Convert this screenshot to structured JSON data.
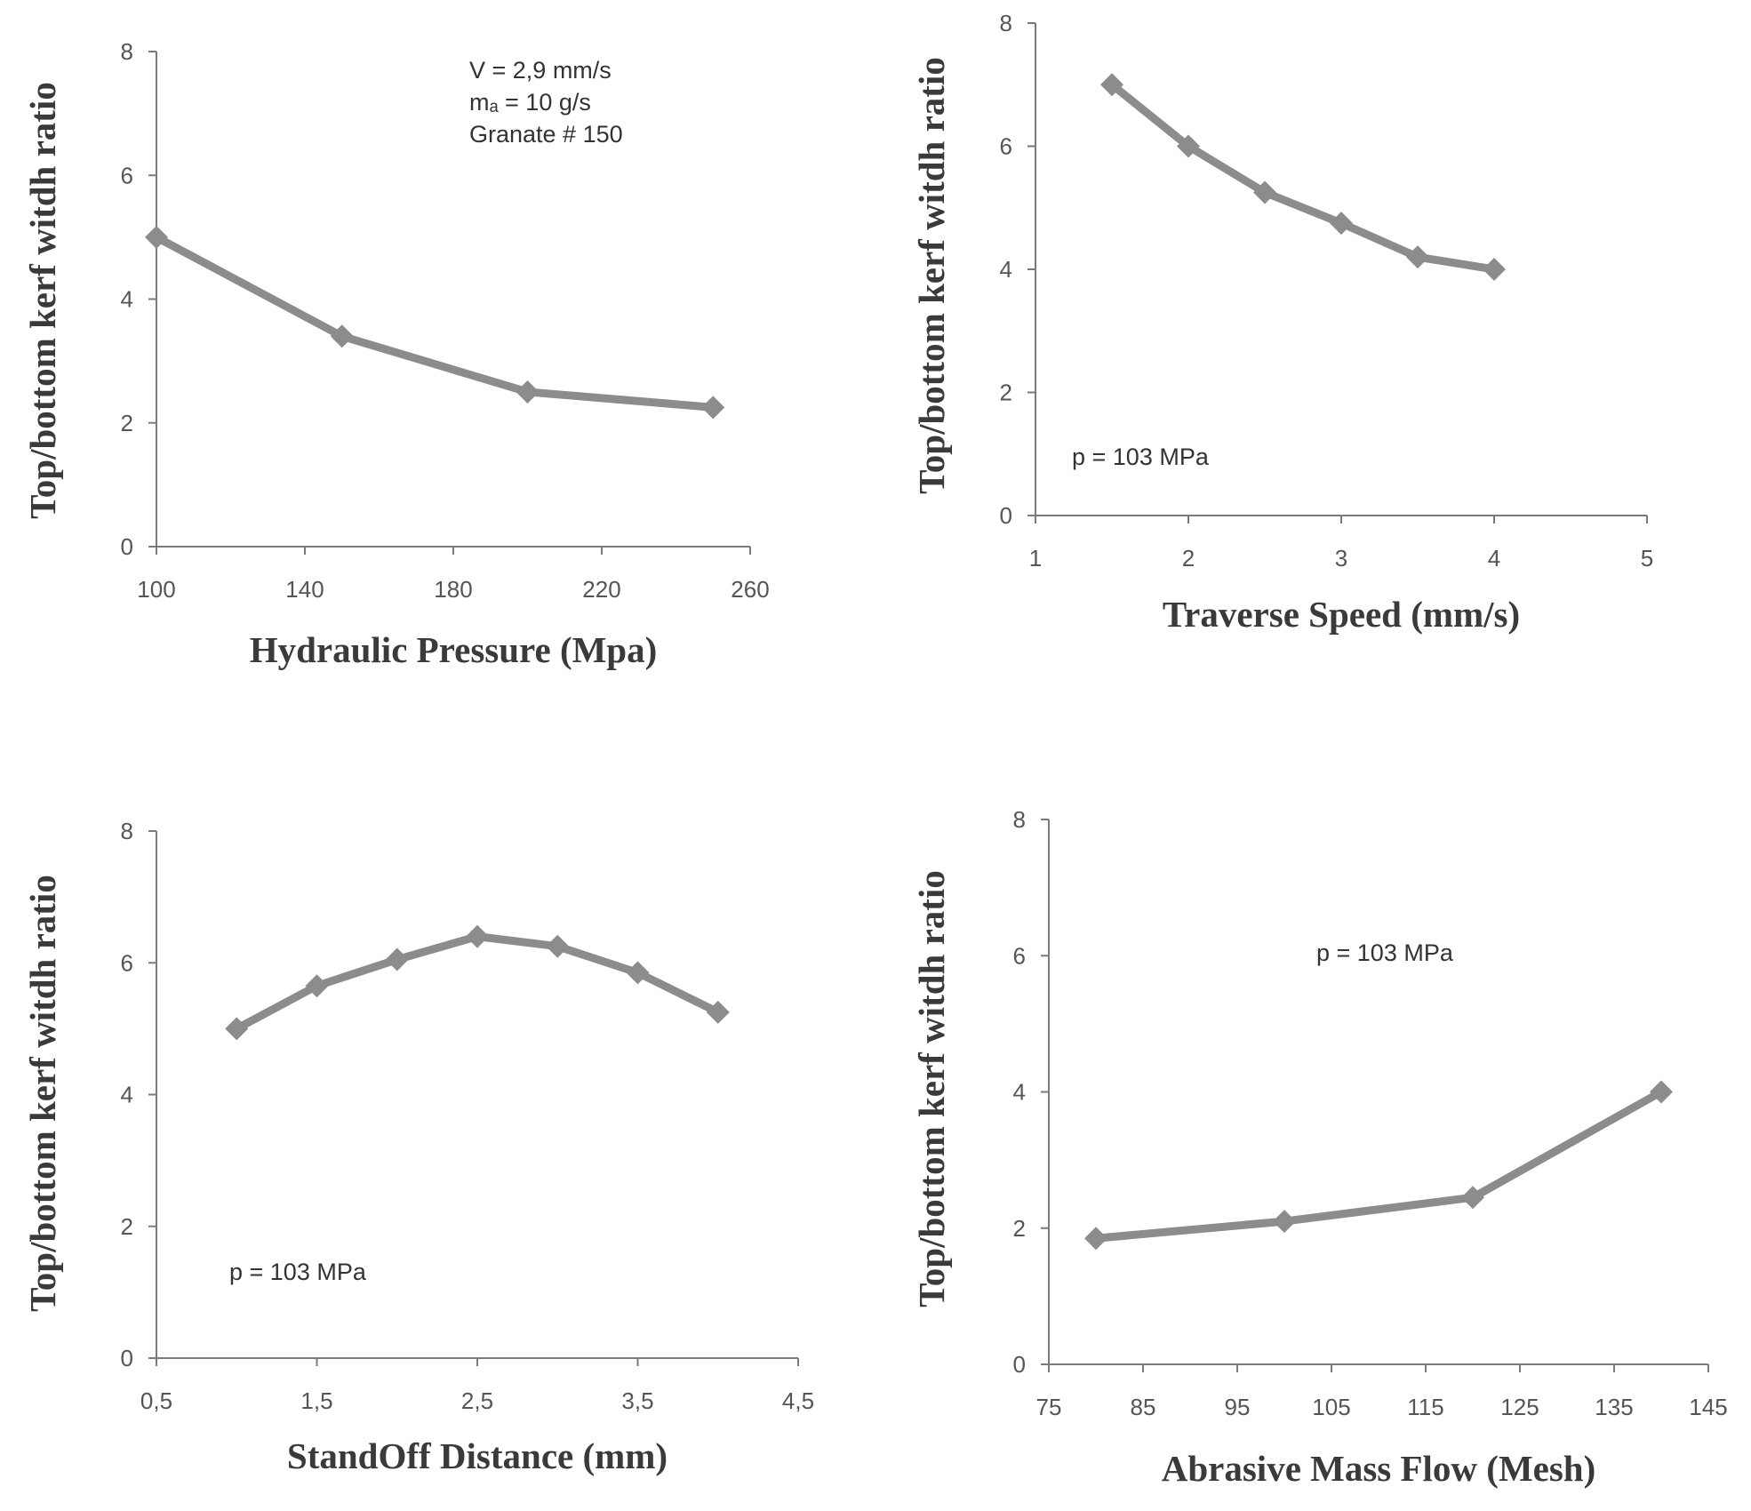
{
  "colors": {
    "series": "#8c8c8c",
    "axis": "#7a7a7a",
    "text": "#3a3a3a"
  },
  "chart_data": [
    {
      "type": "line",
      "xlabel": "Hydraulic Pressure (Mpa)",
      "ylabel": "Top/bottom kerf witdh ratio",
      "xlim": [
        100,
        260
      ],
      "ylim": [
        0,
        8
      ],
      "xticks": [
        100,
        140,
        180,
        220,
        260
      ],
      "xtick_labels": [
        "100",
        "140",
        "180",
        "220",
        "260"
      ],
      "yticks": [
        0,
        2,
        4,
        6,
        8
      ],
      "ytick_labels": [
        "0",
        "2",
        "4",
        "6",
        "8"
      ],
      "grid": false,
      "marker": "diamond",
      "x": [
        100,
        150,
        200,
        250
      ],
      "series": [
        {
          "values": [
            5.0,
            3.4,
            2.5,
            2.25
          ]
        }
      ],
      "annotations": [
        "V = 2,9 mm/s",
        "mₐ = 10 g/s",
        "Granate # 150"
      ]
    },
    {
      "type": "line",
      "xlabel": "Traverse Speed (mm/s)",
      "ylabel": "Top/bottom kerf witdh ratio",
      "xlim": [
        1,
        5
      ],
      "ylim": [
        0,
        8
      ],
      "xticks": [
        1,
        2,
        3,
        4,
        5
      ],
      "xtick_labels": [
        "1",
        "2",
        "3",
        "4",
        "5"
      ],
      "yticks": [
        0,
        2,
        4,
        6,
        8
      ],
      "ytick_labels": [
        "0",
        "2",
        "4",
        "6",
        "8"
      ],
      "grid": false,
      "marker": "diamond",
      "x": [
        1.5,
        2,
        2.5,
        3,
        3.5,
        4
      ],
      "series": [
        {
          "values": [
            7.0,
            6.0,
            5.25,
            4.75,
            4.2,
            4.0
          ]
        }
      ],
      "annotations": [
        "p = 103 MPa"
      ]
    },
    {
      "type": "line",
      "xlabel": "StandOff Distance (mm)",
      "ylabel": "Top/bottom kerf witdh ratio",
      "xlim": [
        0.5,
        4.5
      ],
      "ylim": [
        0,
        8
      ],
      "xticks": [
        0.5,
        1.5,
        2.5,
        3.5,
        4.5
      ],
      "xtick_labels": [
        "0,5",
        "1,5",
        "2,5",
        "3,5",
        "4,5"
      ],
      "yticks": [
        0,
        2,
        4,
        6,
        8
      ],
      "ytick_labels": [
        "0",
        "2",
        "4",
        "6",
        "8"
      ],
      "grid": false,
      "marker": "diamond",
      "x": [
        1,
        1.5,
        2,
        2.5,
        3,
        3.5,
        4
      ],
      "series": [
        {
          "values": [
            5.0,
            5.65,
            6.05,
            6.4,
            6.25,
            5.85,
            5.25
          ]
        }
      ],
      "annotations": [
        "p = 103 MPa"
      ]
    },
    {
      "type": "line",
      "xlabel": "Abrasive Mass Flow (Mesh)",
      "ylabel": "Top/bottom kerf witdh ratio",
      "xlim": [
        75,
        145
      ],
      "ylim": [
        0,
        8
      ],
      "xticks": [
        75,
        85,
        95,
        105,
        115,
        125,
        135,
        145
      ],
      "xtick_labels": [
        "75",
        "85",
        "95",
        "105",
        "115",
        "125",
        "135",
        "145"
      ],
      "yticks": [
        0,
        2,
        4,
        6,
        8
      ],
      "ytick_labels": [
        "0",
        "2",
        "4",
        "6",
        "8"
      ],
      "grid": false,
      "marker": "diamond",
      "x": [
        80,
        100,
        120,
        140
      ],
      "series": [
        {
          "values": [
            1.85,
            2.1,
            2.45,
            4.0
          ]
        }
      ],
      "annotations": [
        "p = 103 MPa"
      ]
    }
  ]
}
